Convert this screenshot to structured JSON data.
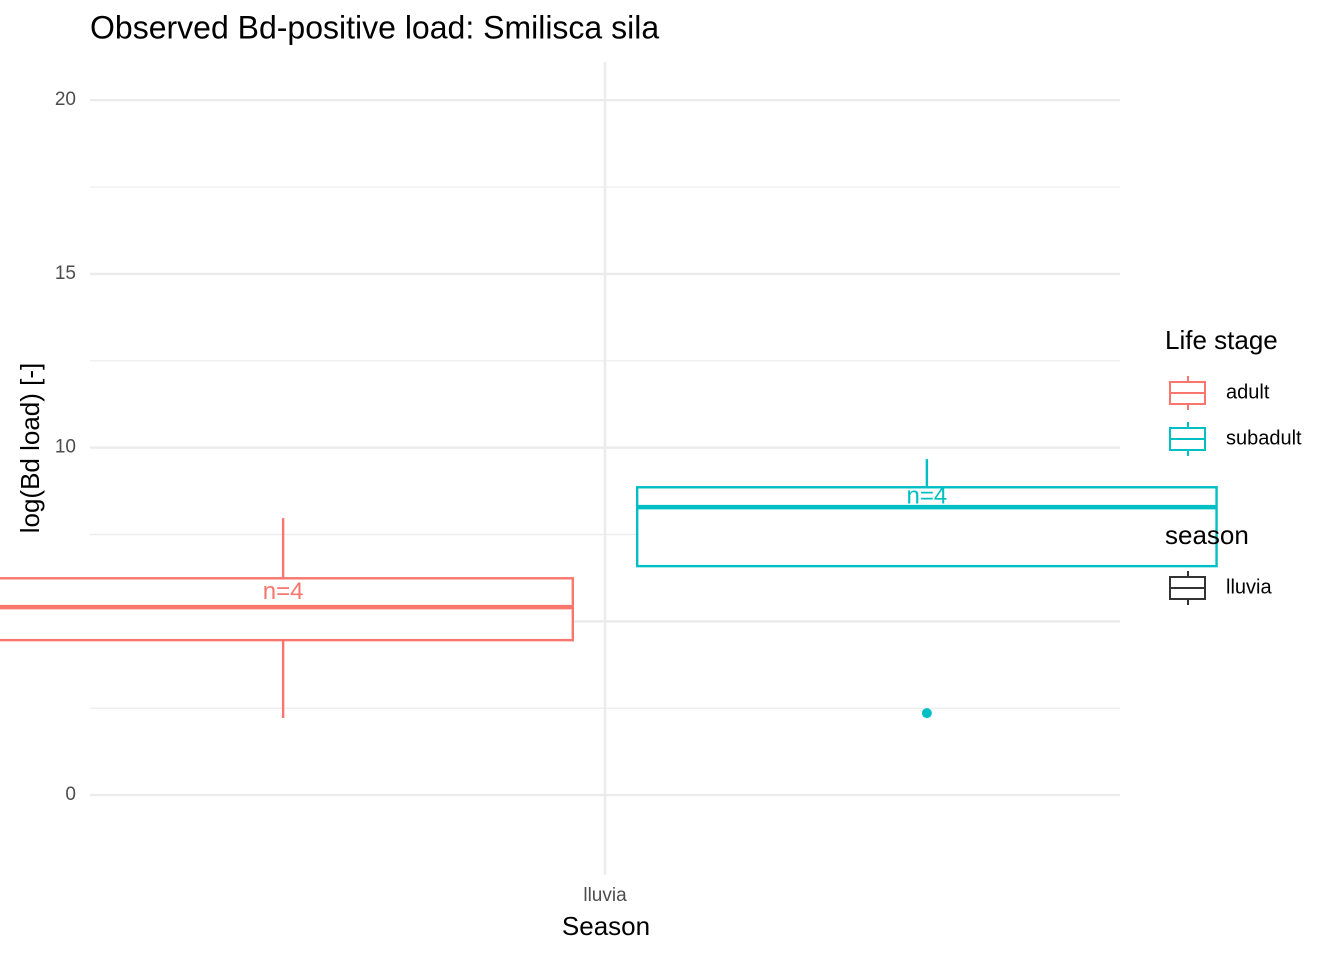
{
  "chart_data": {
    "type": "box",
    "title": "Observed Bd-positive load: Smilisca sila",
    "x_label": "Season",
    "y_label": "log(Bd load) [-]",
    "categories": [
      "lluvia"
    ],
    "series": [
      {
        "name": "adult",
        "color": "#F8766D",
        "low": [
          2.22
        ],
        "q1": [
          4.46
        ],
        "median": [
          5.41
        ],
        "q3": [
          6.24
        ],
        "high": [
          7.97
        ],
        "outliers": [
          []
        ],
        "n_labels": [
          "n=4"
        ]
      },
      {
        "name": "subadult",
        "color": "#00BFC4",
        "low": [
          6.59
        ],
        "q1": [
          6.59
        ],
        "median": [
          8.29
        ],
        "q3": [
          8.86
        ],
        "high": [
          9.67
        ],
        "outliers": [
          [
            2.36
          ]
        ],
        "n_labels": [
          "n=4"
        ]
      }
    ],
    "ylim": [
      -2.3,
      21.1
    ],
    "yticks": [
      0,
      5,
      10,
      15,
      20
    ],
    "y_minor_ticks": [
      2.5,
      7.5,
      12.5,
      17.5
    ],
    "grid": true,
    "legends": [
      {
        "title": "Life stage"
      },
      {
        "title": "season",
        "entries": [
          "lluvia"
        ]
      }
    ]
  }
}
